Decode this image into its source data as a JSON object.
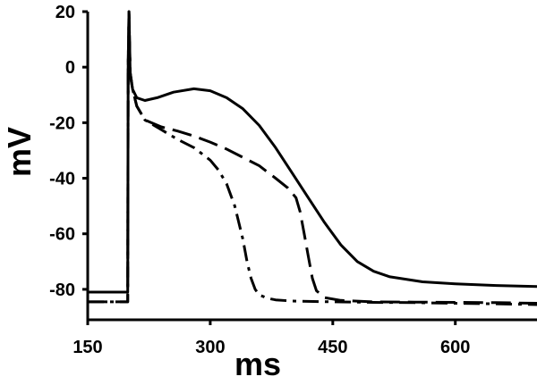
{
  "chart_data": {
    "type": "line",
    "title": "",
    "xlabel": "ms",
    "ylabel": "mV",
    "xlim": [
      150,
      700
    ],
    "ylim": [
      -90,
      20
    ],
    "xticks": [
      150,
      300,
      450,
      600
    ],
    "yticks": [
      20,
      0,
      -20,
      -40,
      -60,
      -80
    ],
    "xtick_labels": [
      "150",
      "300",
      "450",
      "600"
    ],
    "ytick_labels": [
      "20",
      "0",
      "-20",
      "-40",
      "-60",
      "-80"
    ],
    "grid": false,
    "legend": null,
    "series": [
      {
        "name": "solid",
        "dash": "solid",
        "x": [
          150,
          199,
          199.5,
          200.5,
          202,
          205,
          210,
          220,
          235,
          255,
          280,
          300,
          320,
          340,
          360,
          380,
          400,
          420,
          440,
          460,
          480,
          500,
          520,
          560,
          600,
          650,
          700
        ],
        "y": [
          -81,
          -81,
          0,
          20,
          -3,
          -8,
          -11,
          -12,
          -11,
          -9,
          -7.8,
          -8.5,
          -11,
          -15,
          -21,
          -29,
          -38,
          -47,
          -56,
          -64,
          -70,
          -73.5,
          -75.5,
          -77.3,
          -78,
          -78.6,
          -79
        ]
      },
      {
        "name": "dashed",
        "dash": "dashed",
        "x": [
          150,
          199,
          199.5,
          200.5,
          202,
          205,
          210,
          220,
          240,
          260,
          280,
          300,
          320,
          340,
          360,
          380,
          395,
          405,
          410,
          415,
          420,
          425,
          430,
          440,
          460,
          500,
          550,
          600,
          650,
          700
        ],
        "y": [
          -84.5,
          -84.5,
          0,
          20,
          -2,
          -8,
          -14,
          -19,
          -21.5,
          -23,
          -24.8,
          -27,
          -29.5,
          -32.5,
          -35.5,
          -40,
          -43.5,
          -47,
          -52,
          -60,
          -68,
          -76,
          -80.5,
          -83,
          -84,
          -84.5,
          -84.6,
          -84.7,
          -84.8,
          -85
        ]
      },
      {
        "name": "dash-dot",
        "dash": "dashdot",
        "x": [
          150,
          199,
          199.5,
          200.5,
          202,
          205,
          210,
          220,
          240,
          260,
          280,
          300,
          310,
          320,
          330,
          340,
          345,
          350,
          355,
          360,
          370,
          380,
          400,
          450,
          500,
          550,
          600,
          650,
          700
        ],
        "y": [
          -84.5,
          -84.5,
          0,
          20,
          -2,
          -8,
          -14,
          -19,
          -22.5,
          -26,
          -29,
          -33.5,
          -37,
          -42,
          -50,
          -62,
          -70,
          -76,
          -80,
          -82,
          -83.2,
          -83.8,
          -84.2,
          -84.5,
          -84.7,
          -84.8,
          -85,
          -85.2,
          -85.5
        ]
      }
    ]
  }
}
